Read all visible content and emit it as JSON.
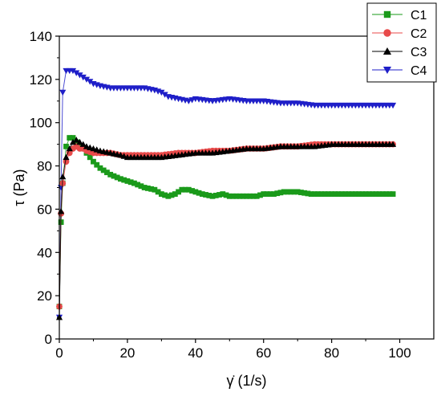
{
  "chart_data": {
    "type": "scatter",
    "title": "",
    "xlabel": "γ̇ (1/s)",
    "ylabel": "τ (Pa)",
    "xlim": [
      0,
      110
    ],
    "ylim": [
      0,
      140
    ],
    "xticks": [
      0,
      20,
      40,
      60,
      80,
      100
    ],
    "yticks": [
      0,
      20,
      40,
      60,
      80,
      100,
      120,
      140
    ],
    "grid": false,
    "legend_position": "top-right",
    "series": [
      {
        "name": "C1",
        "color": "#1a9a1a",
        "marker": "square",
        "x": [
          0,
          0.5,
          1,
          2,
          3,
          4,
          5,
          6,
          7,
          8,
          10,
          12,
          15,
          18,
          20,
          22,
          25,
          28,
          30,
          32,
          34,
          36,
          38,
          40,
          42,
          45,
          48,
          50,
          52,
          55,
          58,
          60,
          63,
          66,
          70,
          74,
          78,
          82,
          86,
          90,
          94,
          98
        ],
        "y": [
          15,
          54,
          72,
          89,
          93,
          93,
          91,
          89,
          88,
          86,
          82,
          79,
          76,
          74,
          73,
          72,
          70,
          69,
          67,
          66,
          67,
          69,
          69,
          68,
          67,
          66,
          67,
          66,
          66,
          66,
          66,
          67,
          67,
          68,
          68,
          67,
          67,
          67,
          67,
          67,
          67,
          67
        ]
      },
      {
        "name": "C2",
        "color": "#e84a4a",
        "marker": "circle",
        "x": [
          0,
          0.5,
          1,
          2,
          3,
          4,
          5,
          6,
          7,
          8,
          10,
          12,
          15,
          18,
          20,
          25,
          30,
          35,
          40,
          45,
          50,
          55,
          60,
          65,
          70,
          75,
          80,
          85,
          90,
          95,
          98
        ],
        "y": [
          15,
          58,
          72,
          82,
          86,
          88,
          89,
          88,
          88,
          87,
          86,
          86,
          86,
          85,
          85,
          85,
          85,
          86,
          86,
          87,
          87,
          88,
          88,
          89,
          89,
          90,
          90,
          90,
          90,
          90,
          90
        ]
      },
      {
        "name": "C3",
        "color": "#000000",
        "marker": "triangle-up",
        "x": [
          0,
          0.5,
          1,
          2,
          3,
          4,
          5,
          6,
          7,
          8,
          10,
          12,
          15,
          18,
          20,
          25,
          30,
          35,
          40,
          45,
          50,
          55,
          60,
          65,
          70,
          75,
          80,
          85,
          90,
          95,
          98
        ],
        "y": [
          10,
          59,
          75,
          84,
          88,
          91,
          92,
          91,
          90,
          89,
          88,
          87,
          86,
          85,
          84,
          84,
          84,
          85,
          86,
          86,
          87,
          88,
          88,
          89,
          89,
          89,
          90,
          90,
          90,
          90,
          90
        ]
      },
      {
        "name": "C4",
        "color": "#1f1fc8",
        "marker": "triangle-down",
        "x": [
          0,
          0.5,
          1,
          2,
          3,
          4,
          5,
          6,
          7,
          8,
          10,
          12,
          15,
          18,
          20,
          22,
          25,
          28,
          30,
          32,
          35,
          38,
          40,
          45,
          50,
          55,
          60,
          65,
          70,
          75,
          80,
          85,
          90,
          95,
          98
        ],
        "y": [
          10,
          70,
          114,
          124,
          124,
          124,
          123,
          122,
          121,
          120,
          118,
          117,
          116,
          116,
          116,
          116,
          116,
          115,
          114,
          112,
          111,
          110,
          111,
          110,
          111,
          110,
          110,
          109,
          109,
          108,
          108,
          108,
          108,
          108,
          108
        ]
      }
    ]
  }
}
